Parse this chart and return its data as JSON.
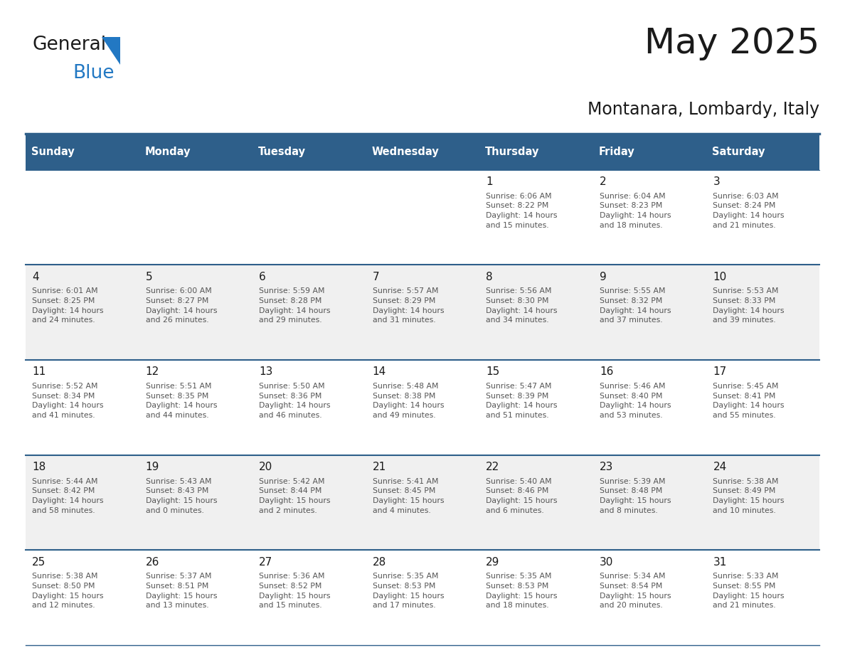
{
  "title": "May 2025",
  "subtitle": "Montanara, Lombardy, Italy",
  "days_of_week": [
    "Sunday",
    "Monday",
    "Tuesday",
    "Wednesday",
    "Thursday",
    "Friday",
    "Saturday"
  ],
  "header_bg": "#2E5F8A",
  "header_text": "#FFFFFF",
  "row_bg_even": "#F0F0F0",
  "row_bg_odd": "#FFFFFF",
  "day_number_color": "#1A1A1A",
  "detail_text_color": "#555555",
  "border_color": "#2E5F8A",
  "calendar_data": [
    [
      "",
      "",
      "",
      "",
      "1\nSunrise: 6:06 AM\nSunset: 8:22 PM\nDaylight: 14 hours\nand 15 minutes.",
      "2\nSunrise: 6:04 AM\nSunset: 8:23 PM\nDaylight: 14 hours\nand 18 minutes.",
      "3\nSunrise: 6:03 AM\nSunset: 8:24 PM\nDaylight: 14 hours\nand 21 minutes."
    ],
    [
      "4\nSunrise: 6:01 AM\nSunset: 8:25 PM\nDaylight: 14 hours\nand 24 minutes.",
      "5\nSunrise: 6:00 AM\nSunset: 8:27 PM\nDaylight: 14 hours\nand 26 minutes.",
      "6\nSunrise: 5:59 AM\nSunset: 8:28 PM\nDaylight: 14 hours\nand 29 minutes.",
      "7\nSunrise: 5:57 AM\nSunset: 8:29 PM\nDaylight: 14 hours\nand 31 minutes.",
      "8\nSunrise: 5:56 AM\nSunset: 8:30 PM\nDaylight: 14 hours\nand 34 minutes.",
      "9\nSunrise: 5:55 AM\nSunset: 8:32 PM\nDaylight: 14 hours\nand 37 minutes.",
      "10\nSunrise: 5:53 AM\nSunset: 8:33 PM\nDaylight: 14 hours\nand 39 minutes."
    ],
    [
      "11\nSunrise: 5:52 AM\nSunset: 8:34 PM\nDaylight: 14 hours\nand 41 minutes.",
      "12\nSunrise: 5:51 AM\nSunset: 8:35 PM\nDaylight: 14 hours\nand 44 minutes.",
      "13\nSunrise: 5:50 AM\nSunset: 8:36 PM\nDaylight: 14 hours\nand 46 minutes.",
      "14\nSunrise: 5:48 AM\nSunset: 8:38 PM\nDaylight: 14 hours\nand 49 minutes.",
      "15\nSunrise: 5:47 AM\nSunset: 8:39 PM\nDaylight: 14 hours\nand 51 minutes.",
      "16\nSunrise: 5:46 AM\nSunset: 8:40 PM\nDaylight: 14 hours\nand 53 minutes.",
      "17\nSunrise: 5:45 AM\nSunset: 8:41 PM\nDaylight: 14 hours\nand 55 minutes."
    ],
    [
      "18\nSunrise: 5:44 AM\nSunset: 8:42 PM\nDaylight: 14 hours\nand 58 minutes.",
      "19\nSunrise: 5:43 AM\nSunset: 8:43 PM\nDaylight: 15 hours\nand 0 minutes.",
      "20\nSunrise: 5:42 AM\nSunset: 8:44 PM\nDaylight: 15 hours\nand 2 minutes.",
      "21\nSunrise: 5:41 AM\nSunset: 8:45 PM\nDaylight: 15 hours\nand 4 minutes.",
      "22\nSunrise: 5:40 AM\nSunset: 8:46 PM\nDaylight: 15 hours\nand 6 minutes.",
      "23\nSunrise: 5:39 AM\nSunset: 8:48 PM\nDaylight: 15 hours\nand 8 minutes.",
      "24\nSunrise: 5:38 AM\nSunset: 8:49 PM\nDaylight: 15 hours\nand 10 minutes."
    ],
    [
      "25\nSunrise: 5:38 AM\nSunset: 8:50 PM\nDaylight: 15 hours\nand 12 minutes.",
      "26\nSunrise: 5:37 AM\nSunset: 8:51 PM\nDaylight: 15 hours\nand 13 minutes.",
      "27\nSunrise: 5:36 AM\nSunset: 8:52 PM\nDaylight: 15 hours\nand 15 minutes.",
      "28\nSunrise: 5:35 AM\nSunset: 8:53 PM\nDaylight: 15 hours\nand 17 minutes.",
      "29\nSunrise: 5:35 AM\nSunset: 8:53 PM\nDaylight: 15 hours\nand 18 minutes.",
      "30\nSunrise: 5:34 AM\nSunset: 8:54 PM\nDaylight: 15 hours\nand 20 minutes.",
      "31\nSunrise: 5:33 AM\nSunset: 8:55 PM\nDaylight: 15 hours\nand 21 minutes."
    ]
  ],
  "logo_color_general": "#1A1A1A",
  "logo_color_blue": "#2278C3",
  "logo_triangle_color": "#2278C3"
}
